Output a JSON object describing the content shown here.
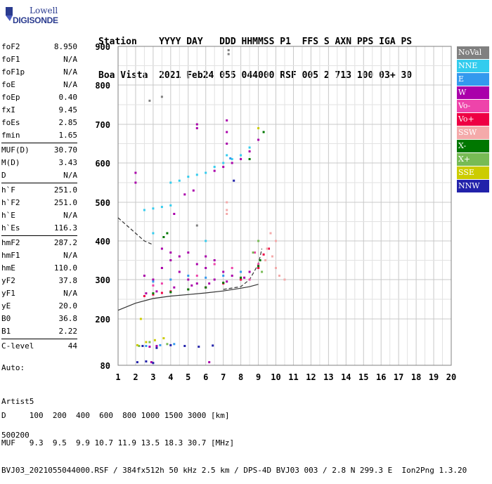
{
  "logo": {
    "line1": "Lowell",
    "line2": "DIGISONDE"
  },
  "header": {
    "line1": "Station    YYYY DAY   DDD HHMMSS P1  FFS S AXN PPS IGA PS",
    "line2": "Boa Vista  2021 Feb24 055 044000 RSF 005 2 713 100 03+ 30"
  },
  "params": [
    {
      "group": [
        {
          "label": "foF2",
          "value": "8.950"
        },
        {
          "label": "foF1",
          "value": "N/A"
        },
        {
          "label": "foF1p",
          "value": "N/A"
        },
        {
          "label": "foE",
          "value": "N/A"
        },
        {
          "label": "foEp",
          "value": "0.40"
        },
        {
          "label": "fxI",
          "value": "9.45"
        },
        {
          "label": "foEs",
          "value": "2.85"
        },
        {
          "label": "fmin",
          "value": "1.65"
        }
      ]
    },
    {
      "group": [
        {
          "label": "MUF(D)",
          "value": "30.70"
        },
        {
          "label": "M(D)",
          "value": "3.43"
        },
        {
          "label": "D",
          "value": "N/A"
        }
      ]
    },
    {
      "group": [
        {
          "label": "h`F",
          "value": "251.0"
        },
        {
          "label": "h`F2",
          "value": "251.0"
        },
        {
          "label": "h`E",
          "value": "N/A"
        },
        {
          "label": "h`Es",
          "value": "116.3"
        }
      ]
    },
    {
      "group": [
        {
          "label": "hmF2",
          "value": "287.2"
        },
        {
          "label": "hmF1",
          "value": "N/A"
        },
        {
          "label": "hmE",
          "value": "110.0"
        },
        {
          "label": "yF2",
          "value": "37.8"
        },
        {
          "label": "yF1",
          "value": "N/A"
        },
        {
          "label": "yE",
          "value": "20.0"
        },
        {
          "label": "B0",
          "value": "36.8"
        },
        {
          "label": "B1",
          "value": "2.22"
        }
      ]
    },
    {
      "group": [
        {
          "label": "C-level",
          "value": "44"
        }
      ]
    }
  ],
  "auto": {
    "line1": "Auto:",
    "line2": "Artist5",
    "line3": "500200"
  },
  "legend": [
    {
      "label": "NoVal",
      "color": "#808080"
    },
    {
      "label": "NNE",
      "color": "#33ccee"
    },
    {
      "label": "E",
      "color": "#3399ee"
    },
    {
      "label": "W",
      "color": "#aa00aa"
    },
    {
      "label": "Vo-",
      "color": "#ee44aa"
    },
    {
      "label": "Vo+",
      "color": "#ee0044"
    },
    {
      "label": "SSW",
      "color": "#f4aaaa"
    },
    {
      "label": "X-",
      "color": "#007700"
    },
    {
      "label": "X+",
      "color": "#77bb55"
    },
    {
      "label": "SSE",
      "color": "#cccc00"
    },
    {
      "label": "NNW",
      "color": "#2222aa"
    }
  ],
  "footer": {
    "line1": "D     100  200  400  600  800 1000 1500 3000 [km]",
    "line2": "MUF   9.3  9.5  9.9 10.7 11.9 13.5 18.3 30.7 [MHz]",
    "line3": "BVJ03_2021055044000.RSF / 384fx512h 50 kHz 2.5 km / DPS-4D BVJ03 003 / 2.8 N 299.3 E  Ion2Png 1.3.20"
  },
  "chart_data": {
    "type": "scatter",
    "title": "",
    "xlabel": "",
    "ylabel": "",
    "xlim": [
      1,
      20
    ],
    "ylim": [
      80,
      900
    ],
    "xticks": [
      1,
      2,
      3,
      4,
      5,
      6,
      7,
      8,
      9,
      10,
      11,
      12,
      13,
      14,
      15,
      16,
      17,
      18,
      19,
      20
    ],
    "yticks": [
      80,
      200,
      300,
      400,
      500,
      600,
      700,
      800,
      900
    ],
    "grid": true,
    "legend_position": "right",
    "series": [
      {
        "name": "W",
        "color": "#aa00aa",
        "points": [
          [
            2.5,
            310
          ],
          [
            3.0,
            300
          ],
          [
            3.5,
            330
          ],
          [
            4.0,
            350
          ],
          [
            4.5,
            320
          ],
          [
            5.0,
            300
          ],
          [
            5.5,
            290
          ],
          [
            6.0,
            330
          ],
          [
            6.5,
            300
          ],
          [
            7.0,
            320
          ],
          [
            7.5,
            310
          ],
          [
            8.0,
            300
          ],
          [
            8.5,
            320
          ],
          [
            9.0,
            330
          ],
          [
            3.5,
            380
          ],
          [
            4.0,
            370
          ],
          [
            4.5,
            360
          ],
          [
            5.0,
            370
          ],
          [
            5.5,
            340
          ],
          [
            6.0,
            360
          ],
          [
            6.5,
            350
          ],
          [
            2.6,
            265
          ],
          [
            3.2,
            270
          ],
          [
            4.2,
            280
          ],
          [
            5.2,
            285
          ],
          [
            6.2,
            290
          ],
          [
            7.2,
            295
          ],
          [
            8.2,
            305
          ],
          [
            6.5,
            580
          ],
          [
            7.0,
            590
          ],
          [
            7.5,
            600
          ],
          [
            8.0,
            610
          ],
          [
            8.5,
            630
          ],
          [
            9.0,
            660
          ],
          [
            4.8,
            520
          ],
          [
            5.3,
            530
          ],
          [
            4.2,
            470
          ],
          [
            2.0,
            575
          ],
          [
            2.0,
            550
          ],
          [
            7.2,
            710
          ],
          [
            7.2,
            680
          ],
          [
            7.2,
            650
          ],
          [
            2.8,
            128
          ],
          [
            3.2,
            130
          ],
          [
            2.9,
            88
          ],
          [
            6.2,
            88
          ],
          [
            5.5,
            700
          ],
          [
            5.5,
            690
          ]
        ]
      },
      {
        "name": "NNE",
        "color": "#33ccee",
        "points": [
          [
            4.0,
            550
          ],
          [
            5.0,
            565
          ],
          [
            6.0,
            575
          ],
          [
            7.0,
            600
          ],
          [
            7.5,
            610
          ],
          [
            8.0,
            620
          ],
          [
            8.5,
            640
          ],
          [
            4.5,
            555
          ],
          [
            5.5,
            570
          ],
          [
            6.5,
            590
          ],
          [
            2.5,
            480
          ],
          [
            3.0,
            484
          ],
          [
            3.5,
            488
          ],
          [
            4.0,
            492
          ],
          [
            7.2,
            620
          ],
          [
            6.0,
            400
          ],
          [
            3.0,
            420
          ]
        ]
      },
      {
        "name": "E",
        "color": "#3399ee",
        "points": [
          [
            3.0,
            295
          ],
          [
            4.0,
            300
          ],
          [
            5.0,
            310
          ],
          [
            6.0,
            305
          ],
          [
            7.0,
            310
          ],
          [
            8.0,
            320
          ],
          [
            2.6,
            130
          ],
          [
            3.4,
            132
          ],
          [
            4.2,
            135
          ],
          [
            7.4,
            612
          ]
        ]
      },
      {
        "name": "Vo-",
        "color": "#ee44aa",
        "points": [
          [
            3.0,
            285
          ],
          [
            3.5,
            290
          ],
          [
            5.5,
            310
          ],
          [
            6.5,
            340
          ],
          [
            7.5,
            330
          ],
          [
            8.5,
            300
          ],
          [
            9.0,
            340
          ],
          [
            8.8,
            370
          ]
        ]
      },
      {
        "name": "Vo+",
        "color": "#ee0044",
        "points": [
          [
            2.5,
            258
          ],
          [
            3.0,
            262
          ],
          [
            3.5,
            266
          ],
          [
            4.0,
            270
          ],
          [
            5.0,
            275
          ],
          [
            6.0,
            280
          ],
          [
            7.0,
            290
          ],
          [
            8.0,
            300
          ],
          [
            9.0,
            330
          ],
          [
            9.3,
            365
          ],
          [
            9.6,
            380
          ]
        ]
      },
      {
        "name": "SSW",
        "color": "#f4aaaa",
        "points": [
          [
            9.5,
            380
          ],
          [
            9.8,
            360
          ],
          [
            10.0,
            330
          ],
          [
            10.2,
            310
          ],
          [
            10.0,
            400
          ],
          [
            9.7,
            420
          ],
          [
            7.2,
            470
          ],
          [
            7.2,
            480
          ],
          [
            7.2,
            500
          ],
          [
            10.5,
            300
          ],
          [
            9.4,
            350
          ]
        ]
      },
      {
        "name": "X-",
        "color": "#007700",
        "points": [
          [
            3.0,
            265
          ],
          [
            4.0,
            268
          ],
          [
            5.0,
            275
          ],
          [
            6.0,
            280
          ],
          [
            7.0,
            292
          ],
          [
            8.0,
            305
          ],
          [
            9.0,
            335
          ],
          [
            9.1,
            350
          ],
          [
            8.5,
            610
          ],
          [
            9.3,
            680
          ],
          [
            3.8,
            420
          ],
          [
            3.6,
            410
          ]
        ]
      },
      {
        "name": "X+",
        "color": "#77bb55",
        "points": [
          [
            2.2,
            130
          ],
          [
            2.8,
            140
          ],
          [
            3.8,
            135
          ],
          [
            9.2,
            320
          ],
          [
            9.0,
            400
          ],
          [
            8.7,
            370
          ]
        ]
      },
      {
        "name": "SSE",
        "color": "#cccc00",
        "points": [
          [
            2.3,
            200
          ],
          [
            2.6,
            140
          ],
          [
            3.1,
            145
          ],
          [
            3.6,
            150
          ],
          [
            2.1,
            132
          ],
          [
            9.0,
            690
          ]
        ]
      },
      {
        "name": "NNW",
        "color": "#2222aa",
        "points": [
          [
            2.1,
            88
          ],
          [
            2.6,
            90
          ],
          [
            3.0,
            86
          ],
          [
            2.4,
            130
          ],
          [
            3.2,
            125
          ],
          [
            4.0,
            132
          ],
          [
            4.8,
            130
          ],
          [
            5.6,
            128
          ],
          [
            6.4,
            131
          ],
          [
            7.6,
            555
          ]
        ]
      },
      {
        "name": "NoVal",
        "color": "#808080",
        "points": [
          [
            7.3,
            880
          ],
          [
            7.3,
            890
          ],
          [
            5.0,
            820
          ],
          [
            3.5,
            770
          ],
          [
            2.8,
            760
          ],
          [
            5.5,
            440
          ]
        ]
      }
    ],
    "curves": [
      {
        "name": "profile-dashed",
        "style": "dashed",
        "points": [
          [
            1.0,
            460
          ],
          [
            1.5,
            440
          ],
          [
            2.0,
            420
          ],
          [
            2.5,
            400
          ],
          [
            3.0,
            390
          ]
        ]
      },
      {
        "name": "profile-solid",
        "style": "solid",
        "points": [
          [
            1.0,
            222
          ],
          [
            2.0,
            240
          ],
          [
            3.0,
            252
          ],
          [
            4.0,
            258
          ],
          [
            5.0,
            262
          ],
          [
            6.0,
            266
          ],
          [
            7.0,
            271
          ],
          [
            8.0,
            278
          ],
          [
            8.5,
            282
          ],
          [
            9.0,
            288
          ]
        ]
      },
      {
        "name": "profile-dashed-upper",
        "style": "dashed",
        "points": [
          [
            7.0,
            275
          ],
          [
            8.0,
            282
          ],
          [
            8.5,
            300
          ],
          [
            9.0,
            340
          ],
          [
            9.2,
            380
          ]
        ]
      }
    ]
  }
}
